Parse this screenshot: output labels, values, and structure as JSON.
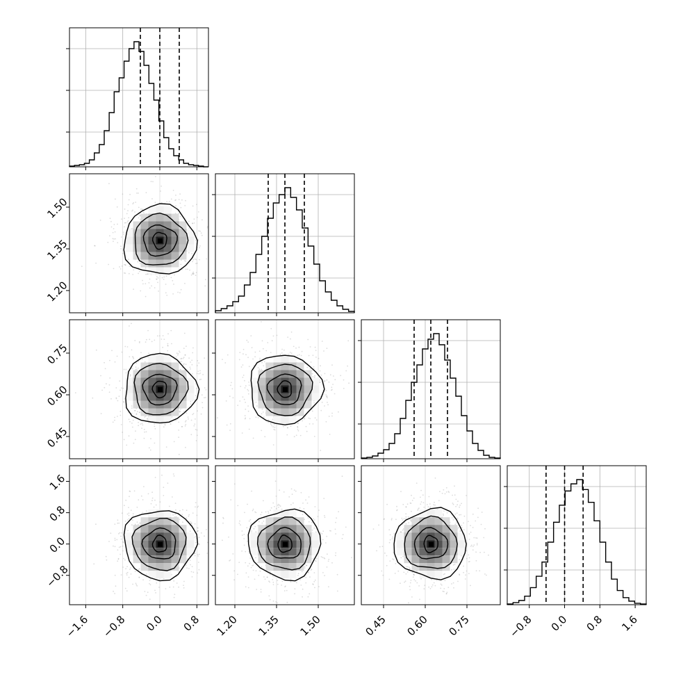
{
  "chart_data": {
    "type": "corner",
    "params": [
      {
        "xticks": [
          -1.6,
          -0.8,
          0.0,
          0.8
        ],
        "xticklabels": [
          "−1.6",
          "−0.8",
          "0.0",
          "0.8"
        ],
        "range": [
          -1.95,
          1.05
        ]
      },
      {
        "xticks": [
          1.2,
          1.35,
          1.5
        ],
        "xticklabels": [
          "1.20",
          "1.35",
          "1.50"
        ],
        "range": [
          1.13,
          1.63
        ]
      },
      {
        "xticks": [
          0.45,
          0.6,
          0.75
        ],
        "xticklabels": [
          "0.45",
          "0.60",
          "0.75"
        ],
        "range": [
          0.37,
          0.87
        ]
      },
      {
        "xticks": [
          -0.8,
          0.0,
          0.8,
          1.6
        ],
        "xticklabels": [
          "−0.8",
          "0.0",
          "0.8",
          "1.6"
        ],
        "range": [
          -1.3,
          1.85
        ]
      }
    ],
    "yticklabels": [
      null,
      [
        "1.20",
        "1.35",
        "1.50"
      ],
      [
        "0.45",
        "0.60",
        "0.75"
      ],
      [
        "−0.8",
        "0.0",
        "0.8",
        "1.6"
      ]
    ],
    "yranges": [
      null,
      [
        1.12,
        1.62
      ],
      [
        0.37,
        0.87
      ],
      [
        -1.55,
        2.0
      ]
    ],
    "histograms": [
      {
        "values": [
          1,
          2,
          3,
          5,
          10,
          20,
          32,
          52,
          78,
          108,
          128,
          152,
          170,
          180,
          166,
          146,
          120,
          96,
          66,
          42,
          26,
          16,
          10,
          5,
          3,
          2,
          1,
          0
        ],
        "quantiles": [
          -0.42,
          0.0,
          0.42
        ]
      },
      {
        "values": [
          3,
          6,
          10,
          16,
          24,
          40,
          58,
          84,
          110,
          136,
          158,
          170,
          180,
          166,
          148,
          122,
          96,
          70,
          46,
          30,
          18,
          10,
          5,
          2
        ],
        "quantiles": [
          1.32,
          1.38,
          1.45
        ]
      },
      {
        "values": [
          1,
          2,
          4,
          8,
          13,
          22,
          36,
          58,
          84,
          110,
          135,
          158,
          172,
          180,
          164,
          142,
          116,
          90,
          62,
          40,
          22,
          12,
          5,
          2,
          1
        ],
        "quantiles": [
          0.56,
          0.62,
          0.68
        ]
      },
      {
        "values": [
          1,
          3,
          6,
          12,
          24,
          40,
          60,
          88,
          116,
          140,
          160,
          170,
          176,
          162,
          144,
          118,
          88,
          60,
          36,
          20,
          10,
          5,
          2,
          1
        ],
        "quantiles": [
          -0.42,
          0.0,
          0.42
        ]
      }
    ],
    "panels_2d": [
      {
        "row": 1,
        "col": 0,
        "center": [
          0.0,
          1.38
        ]
      },
      {
        "row": 2,
        "col": 0,
        "center": [
          0.0,
          0.62
        ]
      },
      {
        "row": 2,
        "col": 1,
        "center": [
          1.38,
          0.62
        ]
      },
      {
        "row": 3,
        "col": 0,
        "center": [
          0.0,
          0.0
        ]
      },
      {
        "row": 3,
        "col": 1,
        "center": [
          1.38,
          0.0
        ]
      },
      {
        "row": 3,
        "col": 2,
        "center": [
          0.62,
          0.0
        ]
      }
    ],
    "contour_levels": [
      0.5,
      1.0,
      1.5,
      2.0
    ],
    "grid": true
  }
}
